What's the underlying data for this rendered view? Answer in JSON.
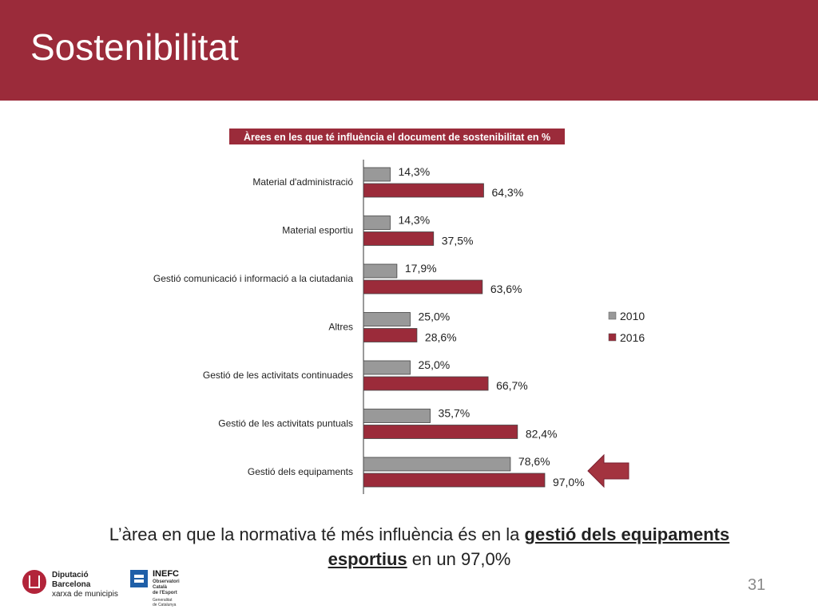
{
  "slide": {
    "title": "Sostenibilitat",
    "conclusion": {
      "before": "L’àrea en que la normativa té  més influència és en la ",
      "highlight": "gestió dels equipaments esportius",
      "after": " en un 97,0%"
    },
    "page_number": "31",
    "colors": {
      "header": "#9b2b3a",
      "series_2010": "#999999",
      "series_2016": "#9b2b3a",
      "arrow": "#a3333f"
    }
  },
  "logos": {
    "diputacio": {
      "line1": "Diputació",
      "line2": "Barcelona",
      "line3": "xarxa de municipis"
    },
    "inefc": {
      "name": "INEFC",
      "line1": "Observatori",
      "line2": "Català",
      "line3": "de l'Esport",
      "line4": "Generalitat",
      "line5": "de Catalunya"
    }
  },
  "chart_data": {
    "type": "bar",
    "orientation": "horizontal",
    "title": "Àrees en les que té influència el document de sostenibilitat en %",
    "categories": [
      "Material d'administració",
      "Material esportiu",
      "Gestió comunicació i informació a la ciutadania",
      "Altres",
      "Gestió de les activitats continuades",
      "Gestió de les activitats puntuals",
      "Gestió dels equipaments"
    ],
    "series": [
      {
        "name": "2010",
        "values": [
          14.3,
          14.3,
          17.9,
          25.0,
          25.0,
          35.7,
          78.6
        ],
        "labels": [
          "14,3%",
          "14,3%",
          "17,9%",
          "25,0%",
          "25,0%",
          "35,7%",
          "78,6%"
        ]
      },
      {
        "name": "2016",
        "values": [
          64.3,
          37.5,
          63.6,
          28.6,
          66.7,
          82.4,
          97.0
        ],
        "labels": [
          "64,3%",
          "37,5%",
          "63,6%",
          "28,6%",
          "66,7%",
          "82,4%",
          "97,0%"
        ]
      }
    ],
    "xlim": [
      0,
      100
    ],
    "grid": false,
    "legend": "right",
    "annotation": "arrow pointing to Gestió dels equipaments"
  }
}
